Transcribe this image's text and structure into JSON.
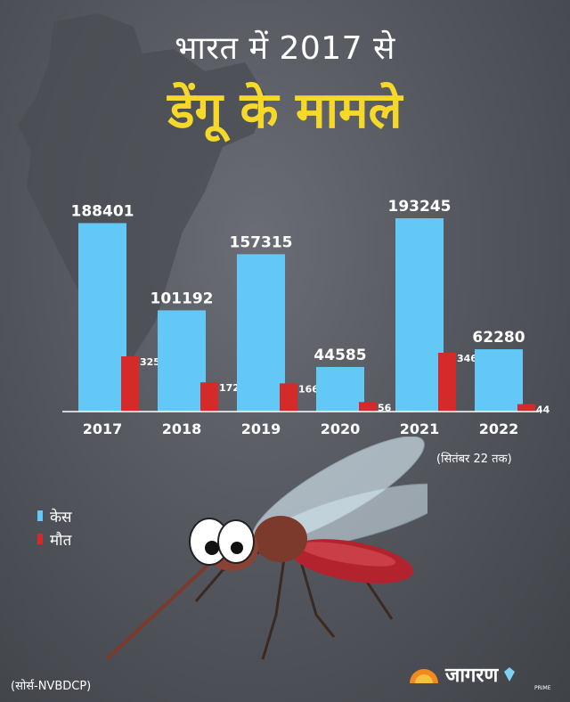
{
  "heading": {
    "line1": "भारत में 2017 से",
    "line2": "डेंगू के मामले"
  },
  "chart_data": {
    "type": "bar",
    "categories": [
      "2017",
      "2018",
      "2019",
      "2020",
      "2021",
      "2022"
    ],
    "series": [
      {
        "name": "केस",
        "color": "#63c8f5",
        "values": [
          188401,
          101192,
          157315,
          44585,
          193245,
          62280
        ]
      },
      {
        "name": "मौत",
        "color": "#d42a2a",
        "values": [
          325,
          172,
          166,
          56,
          346,
          44
        ]
      }
    ],
    "scale": "each series drawn on its own scale",
    "legend_position": "bottom-left",
    "grid": false
  },
  "note": "(सितंबर 22 तक)",
  "source": "(सोर्स-NVBDCP)",
  "brand": {
    "name": "जागरण",
    "sub": "PRIME"
  },
  "colors": {
    "title_yellow": "#f6d82b",
    "cases": "#63c8f5",
    "deaths": "#d42a2a"
  }
}
